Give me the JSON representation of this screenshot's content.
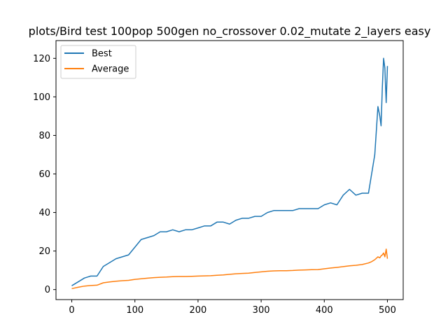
{
  "chart_data": {
    "type": "line",
    "title": "plots/Bird test 100pop 500gen no_crossover 0.02_mutate 2_layers easy",
    "xlabel": "",
    "ylabel": "",
    "xlim": [
      -25,
      525
    ],
    "ylim": [
      -5.2,
      129.2
    ],
    "x_ticks": [
      0,
      100,
      200,
      300,
      400,
      500
    ],
    "y_ticks": [
      0,
      20,
      40,
      60,
      80,
      100,
      120
    ],
    "grid": false,
    "legend_position": "upper-left",
    "x": [
      0,
      10,
      20,
      30,
      40,
      50,
      60,
      70,
      80,
      90,
      100,
      110,
      120,
      130,
      140,
      150,
      160,
      170,
      180,
      190,
      200,
      210,
      220,
      230,
      240,
      250,
      260,
      270,
      280,
      290,
      300,
      310,
      320,
      330,
      340,
      350,
      360,
      370,
      380,
      390,
      400,
      410,
      420,
      430,
      440,
      450,
      460,
      470,
      475,
      480,
      485,
      488,
      490,
      492,
      494,
      496,
      498,
      500
    ],
    "series": [
      {
        "name": "Best",
        "color": "#1f77b4",
        "values": [
          2,
          4,
          6,
          7,
          7,
          12,
          14,
          16,
          17,
          18,
          22,
          26,
          27,
          28,
          30,
          30,
          31,
          30,
          31,
          31,
          32,
          33,
          33,
          35,
          35,
          34,
          36,
          37,
          37,
          38,
          38,
          40,
          41,
          41,
          41,
          41,
          42,
          42,
          42,
          42,
          44,
          45,
          44,
          49,
          52,
          49,
          50,
          50,
          60,
          70,
          95,
          90,
          85,
          105,
          120,
          115,
          97,
          116
        ]
      },
      {
        "name": "Average",
        "color": "#ff7f0e",
        "values": [
          0.5,
          1.2,
          1.8,
          2.1,
          2.3,
          3.5,
          4,
          4.3,
          4.6,
          4.8,
          5.3,
          5.6,
          5.9,
          6.2,
          6.4,
          6.5,
          6.7,
          6.8,
          6.8,
          6.9,
          7,
          7.1,
          7.2,
          7.4,
          7.6,
          7.9,
          8.2,
          8.4,
          8.5,
          8.9,
          9.2,
          9.5,
          9.7,
          9.8,
          9.8,
          9.9,
          10.1,
          10.2,
          10.3,
          10.4,
          10.8,
          11.2,
          11.5,
          11.9,
          12.3,
          12.6,
          13,
          13.8,
          14.5,
          15.5,
          17,
          16.5,
          17.5,
          18,
          19,
          17,
          21,
          16
        ]
      }
    ]
  }
}
